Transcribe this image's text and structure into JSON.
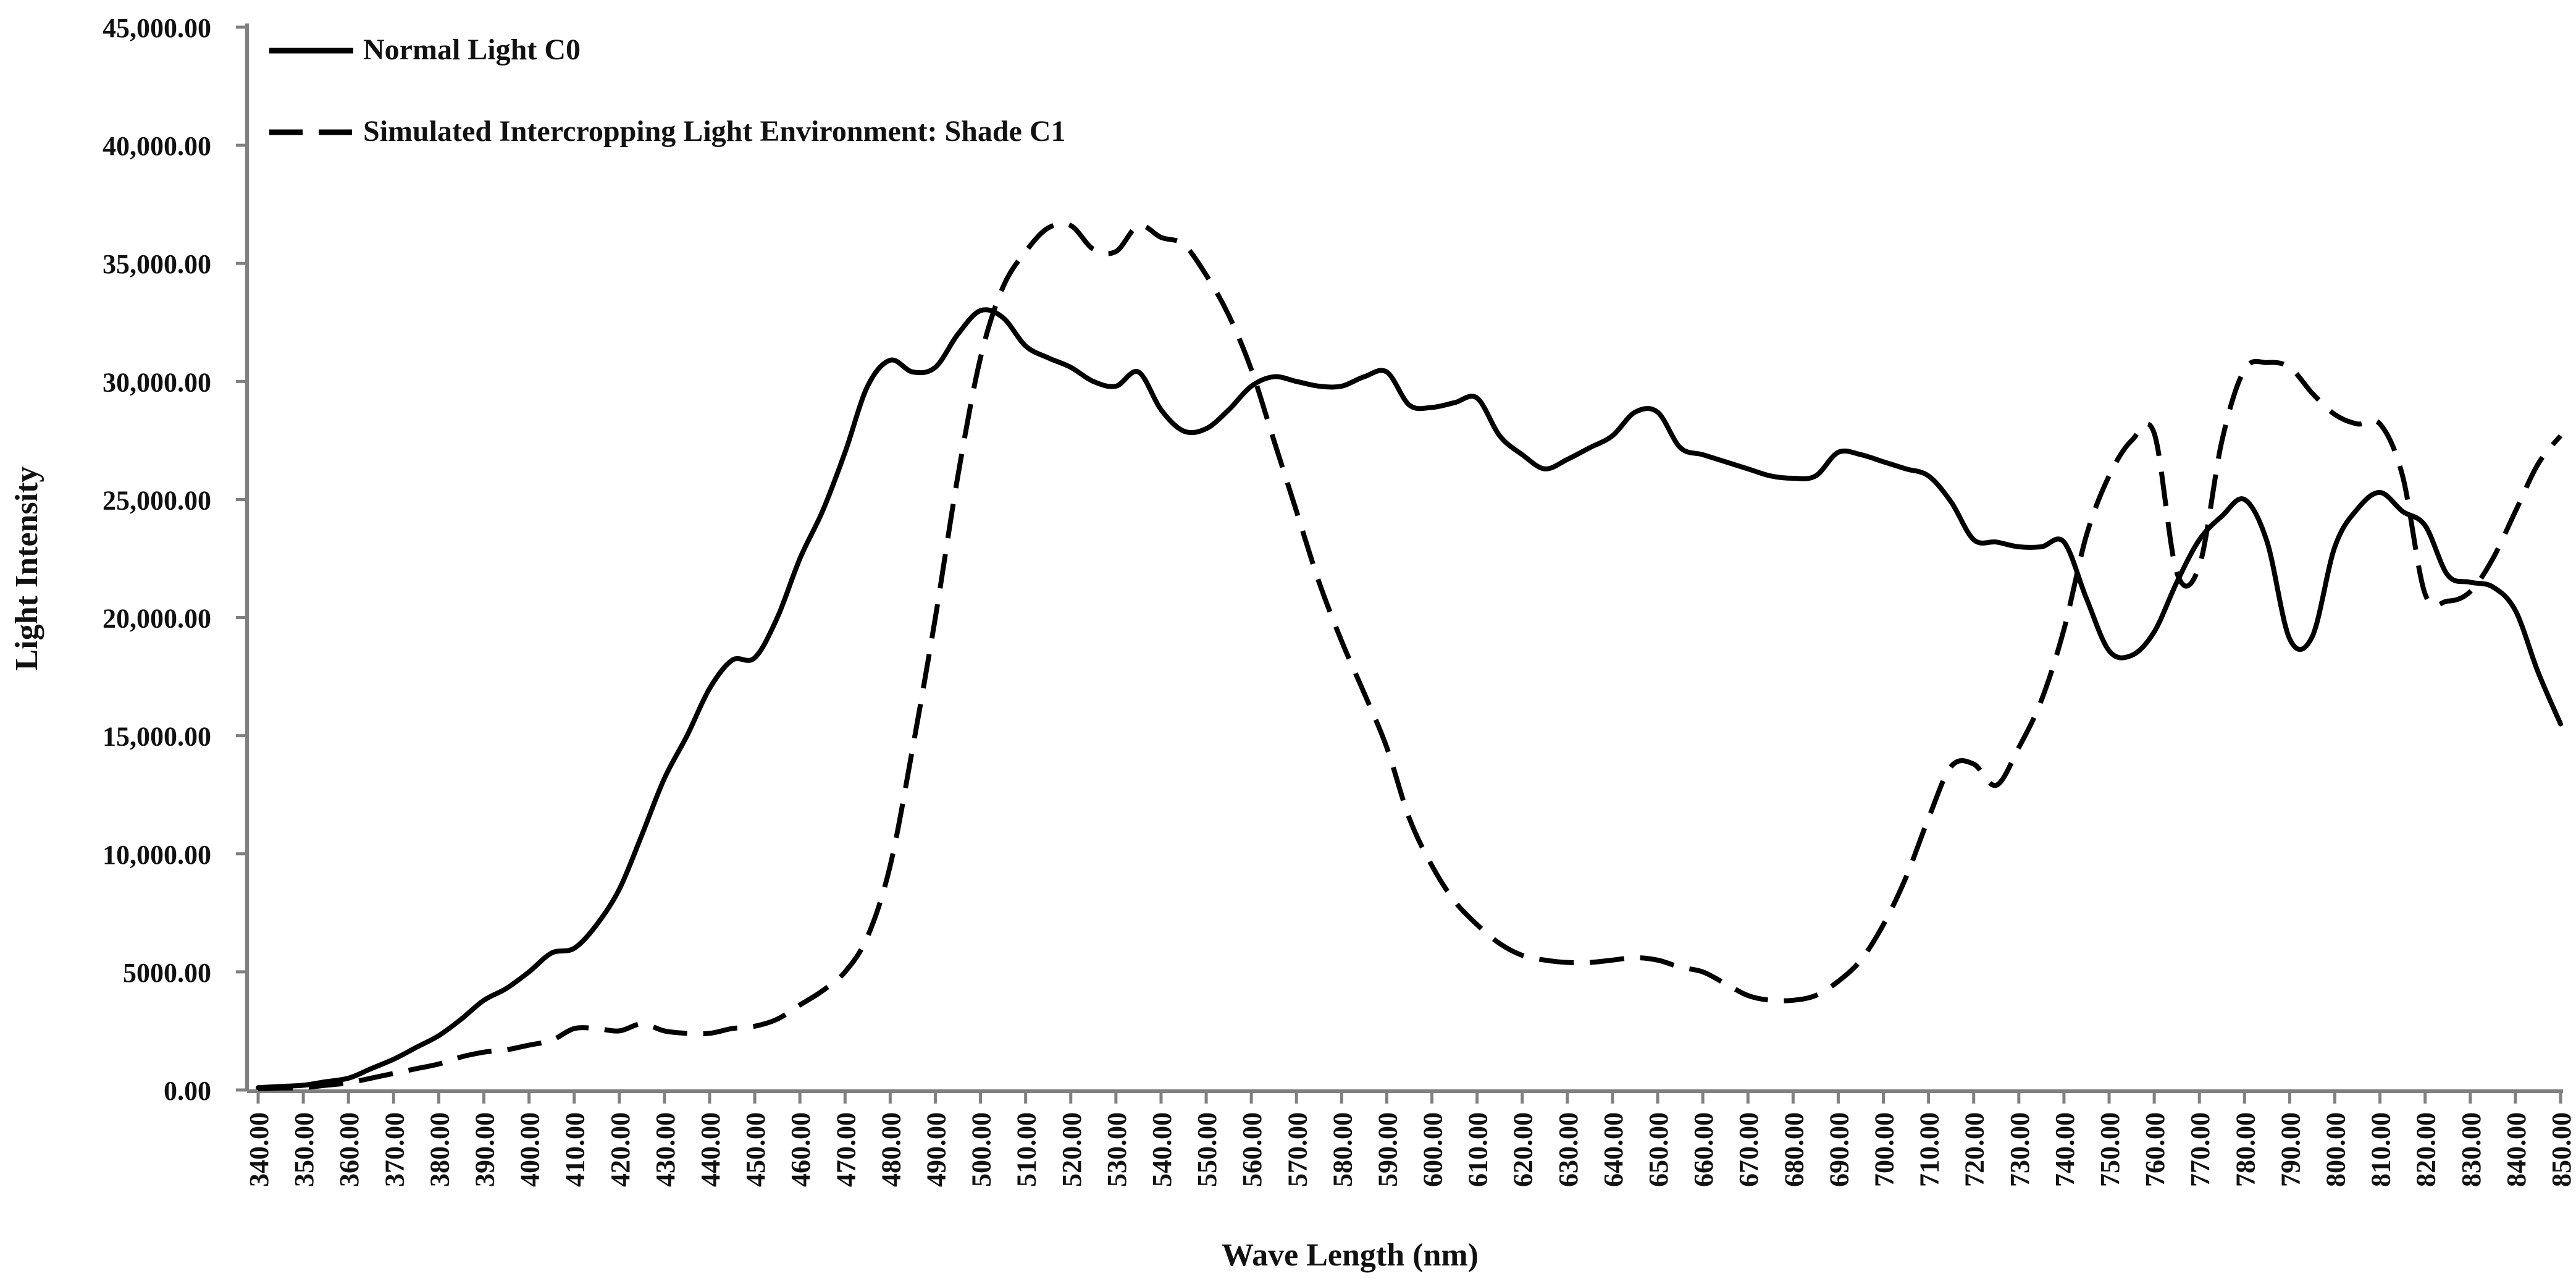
{
  "chart_data": {
    "type": "line",
    "title": "",
    "xlabel": "Wave Length (nm)",
    "ylabel": "Light Intensity",
    "xlim": [
      340,
      850
    ],
    "ylim": [
      0,
      45000
    ],
    "grid": false,
    "legend_position": "top-left",
    "x_ticks": [
      "340.00",
      "350.00",
      "360.00",
      "370.00",
      "380.00",
      "390.00",
      "400.00",
      "410.00",
      "420.00",
      "430.00",
      "440.00",
      "450.00",
      "460.00",
      "470.00",
      "480.00",
      "490.00",
      "500.00",
      "510.00",
      "520.00",
      "530.00",
      "540.00",
      "550.00",
      "560.00",
      "570.00",
      "580.00",
      "590.00",
      "600.00",
      "610.00",
      "620.00",
      "630.00",
      "640.00",
      "650.00",
      "660.00",
      "670.00",
      "680.00",
      "690.00",
      "700.00",
      "710.00",
      "720.00",
      "730.00",
      "740.00",
      "750.00",
      "760.00",
      "770.00",
      "780.00",
      "790.00",
      "800.00",
      "810.00",
      "820.00",
      "830.00",
      "840.00",
      "850.00"
    ],
    "y_ticks": [
      {
        "value": 0,
        "label": "0.00"
      },
      {
        "value": 5000,
        "label": "5000.00"
      },
      {
        "value": 10000,
        "label": "10,000.00"
      },
      {
        "value": 15000,
        "label": "15,000.00"
      },
      {
        "value": 20000,
        "label": "20,000.00"
      },
      {
        "value": 25000,
        "label": "25,000.00"
      },
      {
        "value": 30000,
        "label": "30,000.00"
      },
      {
        "value": 35000,
        "label": "35,000.00"
      },
      {
        "value": 40000,
        "label": "40,000.00"
      },
      {
        "value": 45000,
        "label": "45,000.00"
      }
    ],
    "series": [
      {
        "name": "Normal Light C0",
        "style": "solid",
        "color": "#000000",
        "points": [
          [
            340,
            100
          ],
          [
            345,
            150
          ],
          [
            350,
            200
          ],
          [
            355,
            350
          ],
          [
            360,
            500
          ],
          [
            365,
            900
          ],
          [
            370,
            1300
          ],
          [
            375,
            1800
          ],
          [
            380,
            2300
          ],
          [
            385,
            3000
          ],
          [
            390,
            3800
          ],
          [
            395,
            4300
          ],
          [
            400,
            5000
          ],
          [
            405,
            5800
          ],
          [
            410,
            6000
          ],
          [
            415,
            7000
          ],
          [
            420,
            8500
          ],
          [
            425,
            10800
          ],
          [
            430,
            13200
          ],
          [
            435,
            15000
          ],
          [
            440,
            17000
          ],
          [
            445,
            18200
          ],
          [
            450,
            18300
          ],
          [
            455,
            20000
          ],
          [
            460,
            22500
          ],
          [
            465,
            24500
          ],
          [
            470,
            27000
          ],
          [
            475,
            29800
          ],
          [
            480,
            30900
          ],
          [
            485,
            30400
          ],
          [
            490,
            30600
          ],
          [
            495,
            32000
          ],
          [
            500,
            33000
          ],
          [
            505,
            32700
          ],
          [
            510,
            31500
          ],
          [
            515,
            31000
          ],
          [
            520,
            30600
          ],
          [
            525,
            30000
          ],
          [
            530,
            29800
          ],
          [
            535,
            30400
          ],
          [
            540,
            28800
          ],
          [
            545,
            27900
          ],
          [
            550,
            28000
          ],
          [
            555,
            28800
          ],
          [
            560,
            29800
          ],
          [
            565,
            30200
          ],
          [
            570,
            30000
          ],
          [
            575,
            29800
          ],
          [
            580,
            29800
          ],
          [
            585,
            30200
          ],
          [
            590,
            30400
          ],
          [
            595,
            29000
          ],
          [
            600,
            28900
          ],
          [
            605,
            29100
          ],
          [
            610,
            29300
          ],
          [
            615,
            27700
          ],
          [
            620,
            26900
          ],
          [
            625,
            26300
          ],
          [
            630,
            26700
          ],
          [
            635,
            27200
          ],
          [
            640,
            27700
          ],
          [
            645,
            28700
          ],
          [
            650,
            28700
          ],
          [
            655,
            27200
          ],
          [
            660,
            26900
          ],
          [
            665,
            26600
          ],
          [
            670,
            26300
          ],
          [
            675,
            26000
          ],
          [
            680,
            25900
          ],
          [
            685,
            26000
          ],
          [
            690,
            27000
          ],
          [
            695,
            26900
          ],
          [
            700,
            26600
          ],
          [
            705,
            26300
          ],
          [
            710,
            26000
          ],
          [
            715,
            24900
          ],
          [
            720,
            23300
          ],
          [
            725,
            23200
          ],
          [
            730,
            23000
          ],
          [
            735,
            23000
          ],
          [
            740,
            23200
          ],
          [
            745,
            20800
          ],
          [
            750,
            18600
          ],
          [
            755,
            18400
          ],
          [
            760,
            19400
          ],
          [
            765,
            21500
          ],
          [
            770,
            23300
          ],
          [
            775,
            24300
          ],
          [
            780,
            25000
          ],
          [
            785,
            23200
          ],
          [
            790,
            19100
          ],
          [
            795,
            19200
          ],
          [
            800,
            23000
          ],
          [
            805,
            24600
          ],
          [
            810,
            25300
          ],
          [
            815,
            24500
          ],
          [
            820,
            23900
          ],
          [
            825,
            21800
          ],
          [
            830,
            21500
          ],
          [
            835,
            21300
          ],
          [
            840,
            20300
          ],
          [
            845,
            17700
          ],
          [
            850,
            15500
          ]
        ]
      },
      {
        "name": "Simulated Intercropping Light Environment: Shade C1",
        "style": "dashed",
        "color": "#000000",
        "points": [
          [
            340,
            50
          ],
          [
            345,
            80
          ],
          [
            350,
            100
          ],
          [
            355,
            200
          ],
          [
            360,
            300
          ],
          [
            365,
            500
          ],
          [
            370,
            700
          ],
          [
            375,
            900
          ],
          [
            380,
            1100
          ],
          [
            385,
            1400
          ],
          [
            390,
            1600
          ],
          [
            395,
            1700
          ],
          [
            400,
            1900
          ],
          [
            405,
            2100
          ],
          [
            410,
            2600
          ],
          [
            415,
            2600
          ],
          [
            420,
            2500
          ],
          [
            425,
            2800
          ],
          [
            430,
            2500
          ],
          [
            435,
            2400
          ],
          [
            440,
            2400
          ],
          [
            445,
            2600
          ],
          [
            450,
            2700
          ],
          [
            455,
            3000
          ],
          [
            460,
            3600
          ],
          [
            465,
            4200
          ],
          [
            470,
            5000
          ],
          [
            475,
            6500
          ],
          [
            480,
            9500
          ],
          [
            485,
            14500
          ],
          [
            490,
            20000
          ],
          [
            495,
            26000
          ],
          [
            500,
            31000
          ],
          [
            505,
            34000
          ],
          [
            510,
            35500
          ],
          [
            515,
            36500
          ],
          [
            520,
            36600
          ],
          [
            525,
            35600
          ],
          [
            530,
            35500
          ],
          [
            535,
            36600
          ],
          [
            540,
            36100
          ],
          [
            545,
            35800
          ],
          [
            550,
            34500
          ],
          [
            555,
            32800
          ],
          [
            560,
            30500
          ],
          [
            565,
            27500
          ],
          [
            570,
            24500
          ],
          [
            575,
            21500
          ],
          [
            580,
            19000
          ],
          [
            585,
            16800
          ],
          [
            590,
            14500
          ],
          [
            595,
            11500
          ],
          [
            600,
            9500
          ],
          [
            605,
            8000
          ],
          [
            610,
            7000
          ],
          [
            615,
            6200
          ],
          [
            620,
            5700
          ],
          [
            625,
            5500
          ],
          [
            630,
            5400
          ],
          [
            635,
            5400
          ],
          [
            640,
            5500
          ],
          [
            645,
            5600
          ],
          [
            650,
            5500
          ],
          [
            655,
            5200
          ],
          [
            660,
            5000
          ],
          [
            665,
            4500
          ],
          [
            670,
            4000
          ],
          [
            675,
            3800
          ],
          [
            680,
            3800
          ],
          [
            685,
            4000
          ],
          [
            690,
            4600
          ],
          [
            695,
            5500
          ],
          [
            700,
            7000
          ],
          [
            705,
            9000
          ],
          [
            710,
            11500
          ],
          [
            715,
            13700
          ],
          [
            720,
            13800
          ],
          [
            725,
            12900
          ],
          [
            730,
            14500
          ],
          [
            735,
            16500
          ],
          [
            740,
            19500
          ],
          [
            745,
            23500
          ],
          [
            750,
            26000
          ],
          [
            755,
            27500
          ],
          [
            760,
            27800
          ],
          [
            765,
            21900
          ],
          [
            770,
            22200
          ],
          [
            775,
            27500
          ],
          [
            780,
            30500
          ],
          [
            785,
            30800
          ],
          [
            790,
            30600
          ],
          [
            795,
            29500
          ],
          [
            800,
            28600
          ],
          [
            805,
            28200
          ],
          [
            810,
            28200
          ],
          [
            815,
            26000
          ],
          [
            820,
            21000
          ],
          [
            825,
            20700
          ],
          [
            830,
            21100
          ],
          [
            835,
            22500
          ],
          [
            840,
            24500
          ],
          [
            845,
            26500
          ],
          [
            850,
            27700
          ]
        ]
      }
    ]
  }
}
